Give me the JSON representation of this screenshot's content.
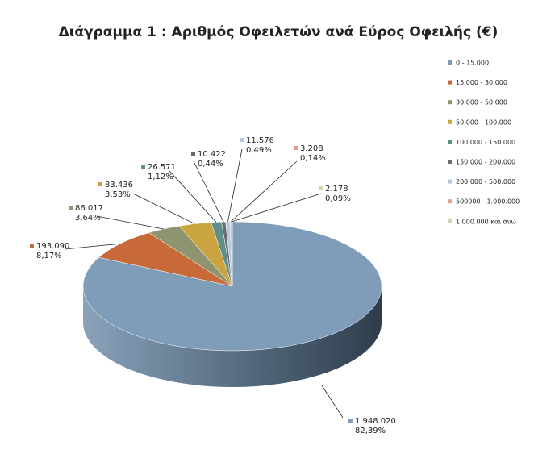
{
  "chart_data": {
    "type": "pie",
    "title": "Διάγραμμα 1 : Αριθμός Οφειλετών ανά Εύρος Οφειλής (€)",
    "categories": [
      "0 - 15.000",
      "15.000 - 30.000",
      "30.000 - 50.000",
      "50.000 - 100.000",
      "100.000 - 150.000",
      "150.000 - 200.000",
      "200.000 - 500.000",
      "500000 - 1.000.000",
      "1.000.000  και άνω"
    ],
    "values": [
      1948020,
      193090,
      86017,
      83436,
      26571,
      10422,
      11576,
      3208,
      2178
    ],
    "value_labels": [
      "1.948.020",
      "193.090",
      "86.017",
      "83.436",
      "26.571",
      "10.422",
      "11.576",
      "3.208",
      "2.178"
    ],
    "percents": [
      82.39,
      8.17,
      3.64,
      3.53,
      1.12,
      0.44,
      0.49,
      0.14,
      0.09
    ],
    "percent_labels": [
      "82,39%",
      "8,17%",
      "3,64%",
      "3,53%",
      "1,12%",
      "0,44%",
      "0,49%",
      "0,14%",
      "0,09%"
    ],
    "colors": [
      "#7f9db9",
      "#c8693a",
      "#8e9470",
      "#c9a440",
      "#5f8f8a",
      "#6b6b70",
      "#b8c8dc",
      "#e0a090",
      "#d8d0b0"
    ],
    "legend": "right"
  }
}
